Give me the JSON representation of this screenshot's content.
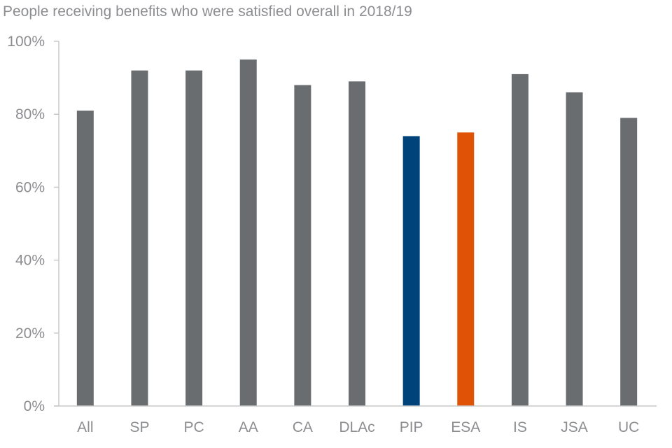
{
  "chart_data": {
    "type": "bar",
    "title": "People receiving benefits who were satisfied overall in 2018/19",
    "xlabel": "",
    "ylabel": "",
    "categories": [
      "All",
      "SP",
      "PC",
      "AA",
      "CA",
      "DLAc",
      "PIP",
      "ESA",
      "IS",
      "JSA",
      "UC"
    ],
    "values": [
      81,
      92,
      92,
      95,
      88,
      89,
      74,
      75,
      91,
      86,
      79
    ],
    "unit": "%",
    "colors": [
      "#6a6d70",
      "#6a6d70",
      "#6a6d70",
      "#6a6d70",
      "#6a6d70",
      "#6a6d70",
      "#00427a",
      "#e05206",
      "#6a6d70",
      "#6a6d70",
      "#6a6d70"
    ],
    "ylim": [
      0,
      100
    ],
    "yticks": [
      0,
      20,
      40,
      60,
      80,
      100
    ],
    "ytick_labels": [
      "0%",
      "20%",
      "40%",
      "60%",
      "80%",
      "100%"
    ],
    "grid": false,
    "legend": "none"
  }
}
